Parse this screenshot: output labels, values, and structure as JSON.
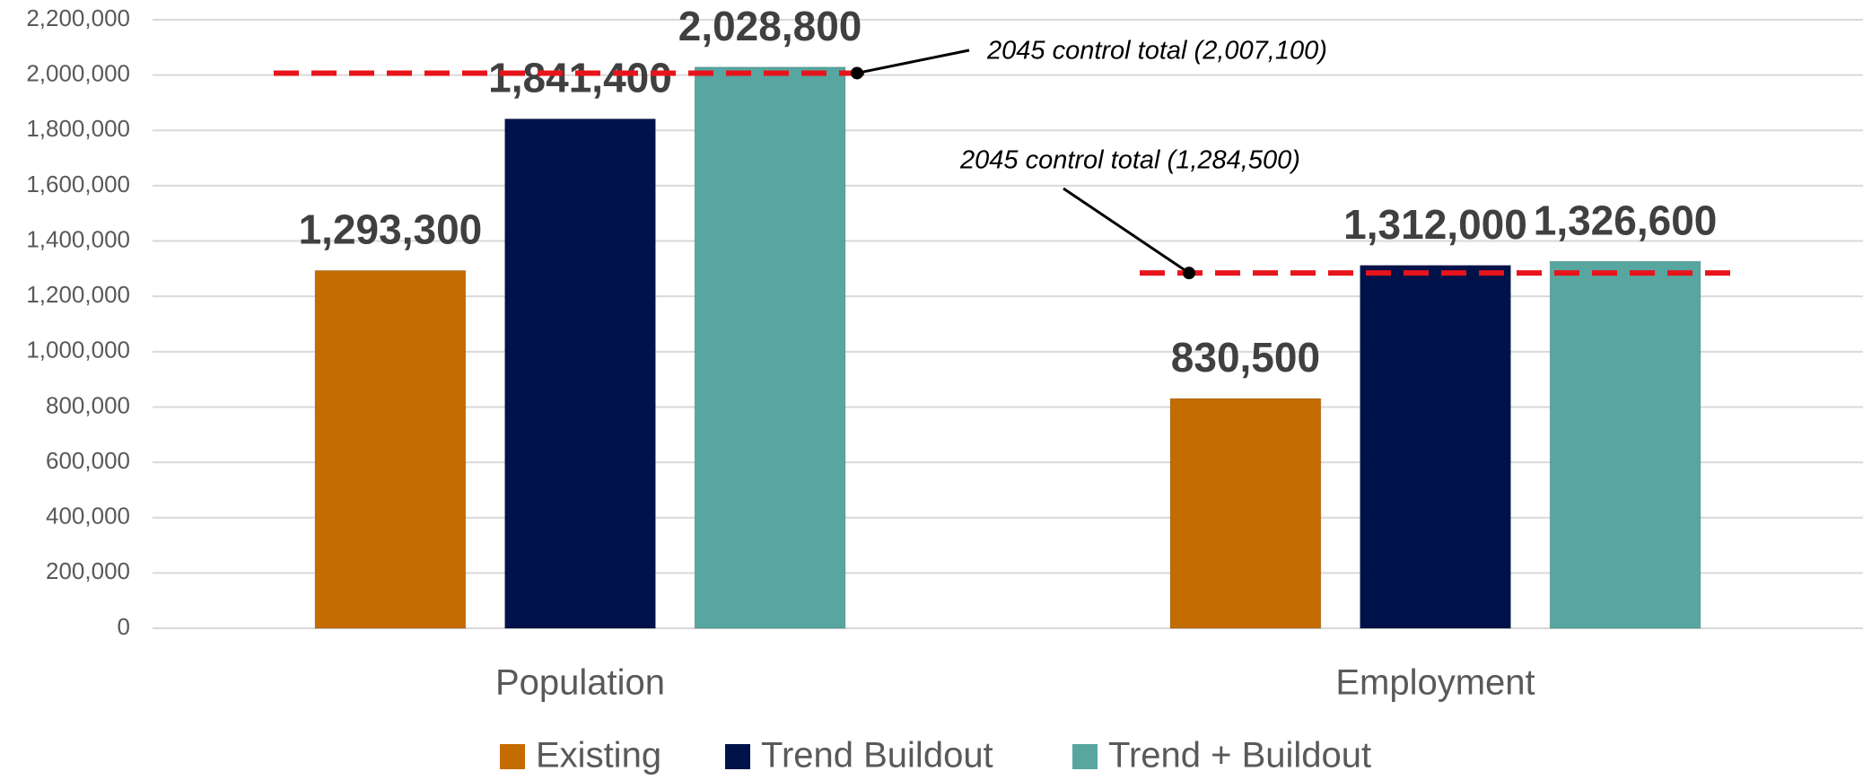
{
  "chart_data": {
    "type": "bar",
    "categories": [
      "Population",
      "Employment"
    ],
    "series": [
      {
        "name": "Existing",
        "color": "#c46c00",
        "values": [
          1293300,
          830500
        ],
        "value_labels": [
          "1,293,300",
          "830,500"
        ]
      },
      {
        "name": "Trend Buildout",
        "color": "#00124a",
        "values": [
          1841400,
          1312000
        ],
        "value_labels": [
          "1,841,400",
          "1,312,000"
        ]
      },
      {
        "name": "Trend + Buildout",
        "color": "#58a6a0",
        "values": [
          2028800,
          1326600
        ],
        "value_labels": [
          "2,028,800",
          "1,326,600"
        ]
      }
    ],
    "ylim": [
      0,
      2200000
    ],
    "yticks": [
      0,
      {
        "value": 200000,
        "label": "200,000"
      },
      {
        "value": 400000,
        "label": "400,000"
      },
      {
        "value": 600000,
        "label": "600,000"
      },
      {
        "value": 800000,
        "label": "800,000"
      },
      {
        "value": 1000000,
        "label": "1,000,000"
      },
      {
        "value": 1200000,
        "label": "1,200,000"
      },
      {
        "value": 1400000,
        "label": "1,400,000"
      },
      {
        "value": 1600000,
        "label": "1,600,000"
      },
      {
        "value": 1800000,
        "label": "1,800,000"
      },
      {
        "value": 2000000,
        "label": "2,000,000"
      },
      {
        "value": 2200000,
        "label": "2,200,000"
      }
    ],
    "grid": true,
    "legend": "bottom",
    "reference_lines": [
      {
        "value": 2007100,
        "label": "2045 control total (2,007,100)",
        "color": "#e8141b"
      },
      {
        "value": 1284500,
        "label": "2045 control total (1,284,500)",
        "color": "#e8141b"
      }
    ]
  }
}
